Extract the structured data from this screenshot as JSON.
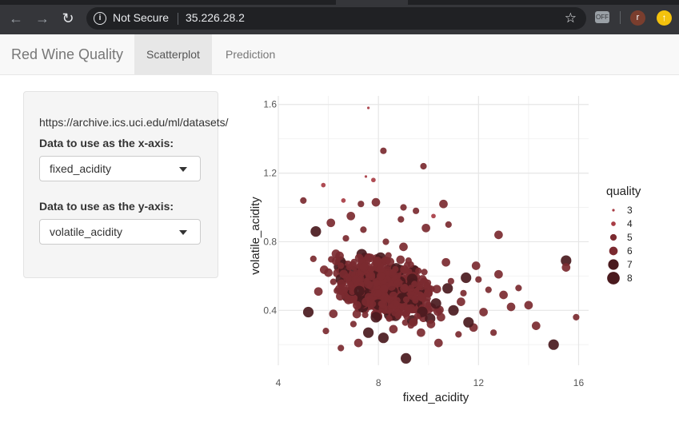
{
  "browser": {
    "security_text": "Not Secure",
    "url": "35.226.28.2",
    "profile_initial": "r"
  },
  "app": {
    "brand": "Red Wine Quality",
    "tabs": [
      {
        "label": "Scatterplot",
        "active": true
      },
      {
        "label": "Prediction",
        "active": false
      }
    ]
  },
  "sidebar": {
    "dataset_url": "https://archive.ics.uci.edu/ml/datasets/",
    "x_label": "Data to use as the x-axis:",
    "x_value": "fixed_acidity",
    "y_label": "Data to use as the y-axis:",
    "y_value": "volatile_acidity"
  },
  "colors": {
    "point": "#7b2a30",
    "point_dark": "#4a1a1e",
    "point_light": "#a83c44"
  },
  "chart_data": {
    "type": "scatter",
    "xlabel": "fixed_acidity",
    "ylabel": "volatile_acidity",
    "xlim": [
      4.0,
      16.4
    ],
    "ylim": [
      0.08,
      1.65
    ],
    "x_ticks": [
      "4",
      "8",
      "12",
      "16"
    ],
    "y_ticks": [
      "0.4",
      "0.8",
      "1.2",
      "1.6"
    ],
    "grid": true,
    "legend_title": "quality",
    "legend_placement": "right",
    "legend": [
      "3",
      "4",
      "5",
      "6",
      "7",
      "8"
    ],
    "points": [
      [
        7.6,
        1.58,
        3
      ],
      [
        8.2,
        1.33,
        5
      ],
      [
        9.8,
        1.24,
        5
      ],
      [
        7.5,
        1.18,
        3
      ],
      [
        7.8,
        1.16,
        4
      ],
      [
        5.8,
        1.13,
        4
      ],
      [
        5.0,
        1.04,
        5
      ],
      [
        10.6,
        1.02,
        6
      ],
      [
        9.0,
        1.0,
        5
      ],
      [
        6.6,
        1.04,
        4
      ],
      [
        7.9,
        1.03,
        6
      ],
      [
        7.3,
        1.02,
        5
      ],
      [
        9.5,
        0.98,
        5
      ],
      [
        10.2,
        0.95,
        4
      ],
      [
        8.9,
        0.93,
        5
      ],
      [
        10.8,
        0.9,
        5
      ],
      [
        6.9,
        0.95,
        6
      ],
      [
        5.5,
        0.86,
        7
      ],
      [
        12.8,
        0.84,
        6
      ],
      [
        9.9,
        0.88,
        6
      ],
      [
        15.5,
        0.69,
        7
      ],
      [
        15.5,
        0.65,
        6
      ],
      [
        15.9,
        0.36,
        5
      ],
      [
        15.0,
        0.2,
        7
      ],
      [
        14.3,
        0.31,
        6
      ],
      [
        14.0,
        0.43,
        6
      ],
      [
        13.6,
        0.53,
        5
      ],
      [
        12.8,
        0.61,
        6
      ],
      [
        13.0,
        0.49,
        6
      ],
      [
        12.2,
        0.39,
        6
      ],
      [
        11.9,
        0.66,
        6
      ],
      [
        11.5,
        0.59,
        7
      ],
      [
        11.8,
        0.3,
        6
      ],
      [
        11.2,
        0.26,
        5
      ],
      [
        10.4,
        0.21,
        6
      ],
      [
        9.1,
        0.12,
        7
      ],
      [
        8.2,
        0.24,
        7
      ],
      [
        7.2,
        0.21,
        6
      ],
      [
        6.5,
        0.18,
        5
      ],
      [
        5.9,
        0.28,
        5
      ],
      [
        5.2,
        0.39,
        7
      ],
      [
        5.6,
        0.51,
        6
      ],
      [
        6.0,
        0.62,
        6
      ],
      [
        6.3,
        0.73,
        6
      ],
      [
        6.7,
        0.82,
        5
      ],
      [
        7.1,
        0.58,
        6
      ],
      [
        7.5,
        0.45,
        6
      ],
      [
        7.9,
        0.36,
        7
      ],
      [
        8.4,
        0.72,
        5
      ],
      [
        8.8,
        0.56,
        6
      ],
      [
        9.2,
        0.41,
        6
      ],
      [
        9.6,
        0.63,
        5
      ],
      [
        10.0,
        0.5,
        6
      ],
      [
        10.5,
        0.36,
        6
      ],
      [
        10.9,
        0.57,
        5
      ],
      [
        11.3,
        0.45,
        6
      ],
      [
        11.6,
        0.33,
        7
      ],
      [
        12.4,
        0.52,
        5
      ],
      [
        12.6,
        0.27,
        5
      ],
      [
        8.6,
        0.29,
        6
      ],
      [
        7.7,
        0.64,
        5
      ],
      [
        6.8,
        0.46,
        6
      ],
      [
        6.2,
        0.38,
        6
      ],
      [
        7.0,
        0.32,
        5
      ],
      [
        8.0,
        0.5,
        5
      ],
      [
        9.4,
        0.33,
        6
      ],
      [
        10.3,
        0.44,
        7
      ],
      [
        5.4,
        0.7,
        5
      ],
      [
        6.5,
        0.66,
        5
      ],
      [
        8.3,
        0.8,
        5
      ],
      [
        9.0,
        0.77,
        6
      ],
      [
        7.4,
        0.87,
        5
      ],
      [
        6.1,
        0.91,
        6
      ],
      [
        10.7,
        0.68,
        6
      ],
      [
        11.0,
        0.4,
        7
      ],
      [
        12.0,
        0.58,
        5
      ],
      [
        13.3,
        0.42,
        6
      ],
      [
        8.7,
        0.44,
        5
      ],
      [
        9.7,
        0.27,
        6
      ],
      [
        7.6,
        0.27,
        7
      ],
      [
        6.9,
        0.55,
        5
      ],
      [
        8.1,
        0.6,
        6
      ],
      [
        9.3,
        0.53,
        5
      ],
      [
        10.1,
        0.32,
        6
      ],
      [
        11.4,
        0.5,
        5
      ]
    ]
  }
}
